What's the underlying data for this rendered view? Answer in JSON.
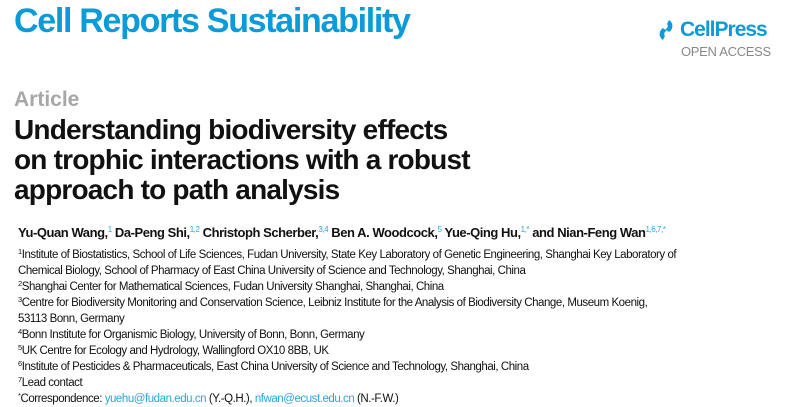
{
  "journal": {
    "name": "Cell Reports Sustainability"
  },
  "publisher": {
    "logo_text": "CellPress",
    "access_label": "OPEN ACCESS",
    "brand_color": "#0a9bd8"
  },
  "article_type": "Article",
  "title_lines": [
    "Understanding biodiversity effects",
    "on trophic interactions with a robust",
    "approach to path analysis"
  ],
  "authors": [
    {
      "name": "Yu-Quan Wang,",
      "sup": "1"
    },
    {
      "name": "Da-Peng Shi,",
      "sup": "1,2"
    },
    {
      "name": "Christoph Scherber,",
      "sup": "3,4"
    },
    {
      "name": "Ben A. Woodcock,",
      "sup": "5"
    },
    {
      "name": "Yue-Qing Hu,",
      "sup": "1,*"
    },
    {
      "name": "and Nian-Feng Wan",
      "sup": "1,6,7,*"
    }
  ],
  "affiliations": [
    {
      "num": "1",
      "lines": [
        "Institute of Biostatistics, School of Life Sciences, Fudan University, State Key Laboratory of Genetic Engineering, Shanghai Key Laboratory of",
        "Chemical Biology, School of Pharmacy of East China University of Science and Technology, Shanghai, China"
      ]
    },
    {
      "num": "2",
      "lines": [
        "Shanghai Center for Mathematical Sciences, Fudan University Shanghai, Shanghai, China"
      ]
    },
    {
      "num": "3",
      "lines": [
        "Centre for Biodiversity Monitoring and Conservation Science, Leibniz Institute for the Analysis of Biodiversity Change, Museum Koenig,",
        "53113 Bonn, Germany"
      ]
    },
    {
      "num": "4",
      "lines": [
        "Bonn Institute for Organismic Biology, University of Bonn, Bonn, Germany"
      ]
    },
    {
      "num": "5",
      "lines": [
        "UK Centre for Ecology and Hydrology, Wallingford OX10 8BB, UK"
      ]
    },
    {
      "num": "6",
      "lines": [
        "Institute of Pesticides & Pharmaceuticals, East China University of Science and Technology, Shanghai, China"
      ]
    },
    {
      "num": "7",
      "lines": [
        "Lead contact"
      ]
    }
  ],
  "correspondence": {
    "marker": "*",
    "label": "Correspondence: ",
    "email1": "yuehu@fudan.edu.cn",
    "who1": " (Y.-Q.H.), ",
    "email2": "nfwan@ecust.edu.cn",
    "who2": " (N.-F.W.)"
  }
}
